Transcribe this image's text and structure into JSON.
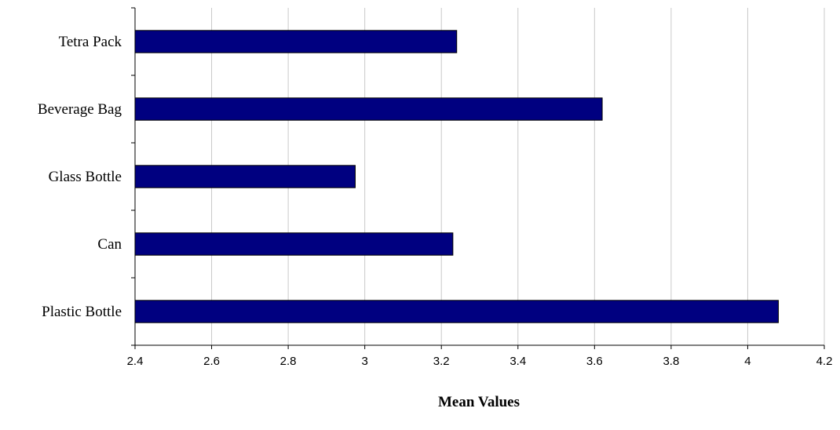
{
  "chart_data": {
    "type": "bar",
    "orientation": "horizontal",
    "categories": [
      "Tetra Pack",
      "Beverage Bag",
      "Glass Bottle",
      "Can",
      "Plastic Bottle"
    ],
    "values": [
      3.24,
      3.62,
      2.975,
      3.23,
      4.08
    ],
    "xlabel": "Mean Values",
    "ylabel": "",
    "xlim": [
      2.4,
      4.2
    ],
    "xticks": [
      "2.4",
      "2.6",
      "2.8",
      "3",
      "3.2",
      "3.4",
      "3.6",
      "3.8",
      "4",
      "4.2"
    ],
    "grid": "vertical",
    "legend": "none",
    "bar_color": "#000080"
  }
}
